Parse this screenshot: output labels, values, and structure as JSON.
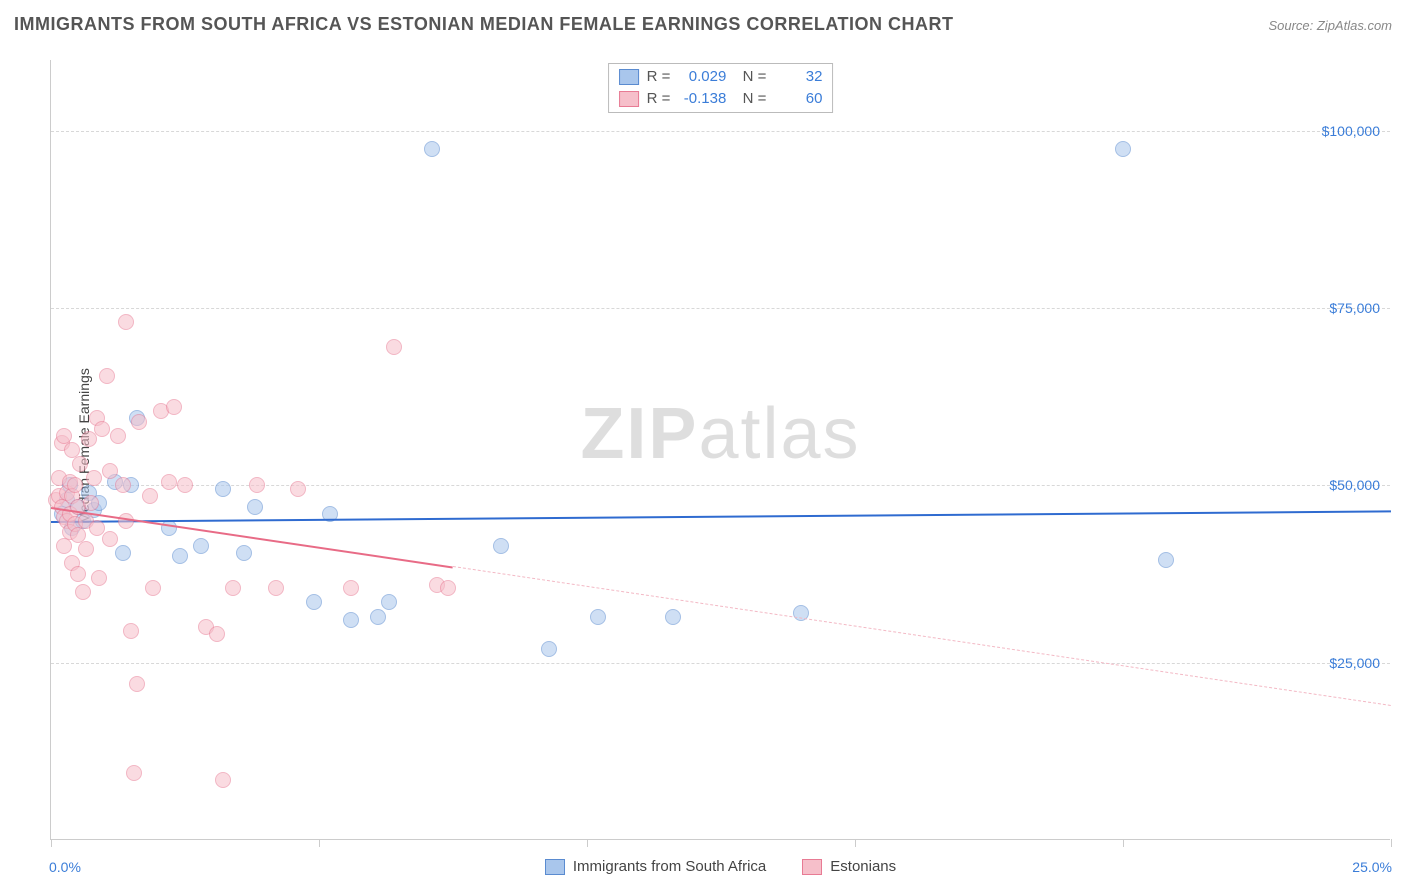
{
  "title": "IMMIGRANTS FROM SOUTH AFRICA VS ESTONIAN MEDIAN FEMALE EARNINGS CORRELATION CHART",
  "source": "Source: ZipAtlas.com",
  "watermark": {
    "bold": "ZIP",
    "rest": "atlas"
  },
  "chart": {
    "type": "scatter",
    "ylabel": "Median Female Earnings",
    "xlim": [
      0,
      25
    ],
    "ylim": [
      0,
      110000
    ],
    "xlim_labels": {
      "min": "0.0%",
      "max": "25.0%"
    },
    "ytick_values": [
      25000,
      50000,
      75000,
      100000
    ],
    "ytick_labels": [
      "$25,000",
      "$50,000",
      "$75,000",
      "$100,000"
    ],
    "xtick_values": [
      0,
      5,
      10,
      15,
      20,
      25
    ],
    "grid_color": "#d8d8d8",
    "axis_color": "#cccccc",
    "background_color": "#ffffff",
    "ytick_label_color": "#3b7dd8",
    "ylabel_color": "#444444",
    "ylabel_fontsize": 14,
    "title_fontsize": 18,
    "title_color": "#555555",
    "marker_radius": 8,
    "marker_border_width": 1.5,
    "series": [
      {
        "name": "Immigrants from South Africa",
        "fill_color": "#a9c6ec",
        "border_color": "#5a8bd0",
        "fill_opacity": 0.55,
        "r": 0.029,
        "n": 32,
        "regression": {
          "solid_x_range": [
            0,
            25
          ],
          "y_at_x0": 45000,
          "y_at_xmax": 46500,
          "line_color": "#2f6bd0",
          "line_width": 2.5
        },
        "points": [
          [
            0.2,
            46000
          ],
          [
            0.3,
            48000
          ],
          [
            0.4,
            44000
          ],
          [
            0.35,
            50000
          ],
          [
            0.5,
            47000
          ],
          [
            0.6,
            45000
          ],
          [
            0.7,
            49000
          ],
          [
            0.8,
            46500
          ],
          [
            0.9,
            47500
          ],
          [
            1.2,
            50500
          ],
          [
            1.35,
            40500
          ],
          [
            1.5,
            50000
          ],
          [
            1.6,
            59500
          ],
          [
            2.2,
            44000
          ],
          [
            2.4,
            40000
          ],
          [
            2.8,
            41500
          ],
          [
            3.2,
            49500
          ],
          [
            3.6,
            40500
          ],
          [
            3.8,
            47000
          ],
          [
            4.9,
            33500
          ],
          [
            5.2,
            46000
          ],
          [
            5.6,
            31000
          ],
          [
            6.1,
            31500
          ],
          [
            6.3,
            33500
          ],
          [
            7.1,
            97500
          ],
          [
            8.4,
            41500
          ],
          [
            9.3,
            27000
          ],
          [
            10.2,
            31500
          ],
          [
            11.6,
            31500
          ],
          [
            14.0,
            32000
          ],
          [
            20.0,
            97500
          ],
          [
            20.8,
            39500
          ]
        ]
      },
      {
        "name": "Estonians",
        "fill_color": "#f6bfca",
        "border_color": "#e87b94",
        "fill_opacity": 0.55,
        "r": -0.138,
        "n": 60,
        "regression": {
          "solid_x_range": [
            0,
            7.5
          ],
          "y_at_x0": 47000,
          "y_at_xmax": 19000,
          "line_color": "#e86b86",
          "dash_color": "#f3b9c5",
          "line_width": 2.5
        },
        "points": [
          [
            0.1,
            48000
          ],
          [
            0.15,
            51000
          ],
          [
            0.15,
            48500
          ],
          [
            0.2,
            56000
          ],
          [
            0.2,
            47000
          ],
          [
            0.25,
            57000
          ],
          [
            0.25,
            45500
          ],
          [
            0.25,
            41500
          ],
          [
            0.3,
            49000
          ],
          [
            0.3,
            45000
          ],
          [
            0.35,
            46000
          ],
          [
            0.35,
            43500
          ],
          [
            0.35,
            50500
          ],
          [
            0.4,
            55000
          ],
          [
            0.4,
            48500
          ],
          [
            0.4,
            39000
          ],
          [
            0.45,
            50000
          ],
          [
            0.45,
            44500
          ],
          [
            0.5,
            47000
          ],
          [
            0.5,
            43000
          ],
          [
            0.5,
            37500
          ],
          [
            0.55,
            53000
          ],
          [
            0.6,
            35000
          ],
          [
            0.65,
            45000
          ],
          [
            0.65,
            41000
          ],
          [
            0.7,
            56500
          ],
          [
            0.75,
            47500
          ],
          [
            0.8,
            51000
          ],
          [
            0.85,
            59500
          ],
          [
            0.85,
            44000
          ],
          [
            0.9,
            37000
          ],
          [
            0.95,
            58000
          ],
          [
            1.05,
            65500
          ],
          [
            1.1,
            52000
          ],
          [
            1.1,
            42500
          ],
          [
            1.25,
            57000
          ],
          [
            1.35,
            50000
          ],
          [
            1.4,
            73000
          ],
          [
            1.4,
            45000
          ],
          [
            1.5,
            29500
          ],
          [
            1.55,
            9500
          ],
          [
            1.6,
            22000
          ],
          [
            1.65,
            59000
          ],
          [
            1.85,
            48500
          ],
          [
            1.9,
            35500
          ],
          [
            2.05,
            60500
          ],
          [
            2.2,
            50500
          ],
          [
            2.3,
            61000
          ],
          [
            2.5,
            50000
          ],
          [
            2.9,
            30000
          ],
          [
            3.1,
            29000
          ],
          [
            3.2,
            8500
          ],
          [
            3.4,
            35500
          ],
          [
            3.85,
            50000
          ],
          [
            4.2,
            35500
          ],
          [
            4.6,
            49500
          ],
          [
            5.6,
            35500
          ],
          [
            6.4,
            69500
          ],
          [
            7.2,
            36000
          ],
          [
            7.4,
            35500
          ]
        ]
      }
    ],
    "legend_bottom": [
      {
        "label": "Immigrants from South Africa",
        "fill": "#a9c6ec",
        "border": "#5a8bd0"
      },
      {
        "label": "Estonians",
        "fill": "#f6bfca",
        "border": "#e87b94"
      }
    ]
  }
}
